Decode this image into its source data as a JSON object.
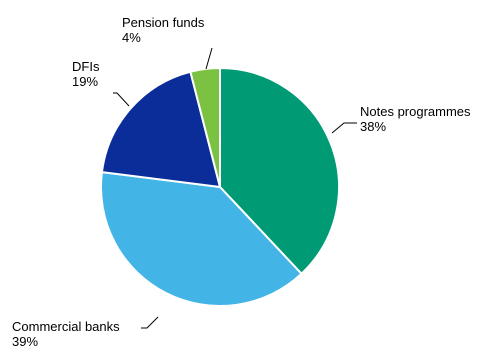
{
  "chart_data": {
    "type": "pie",
    "slices": [
      {
        "label": "Notes programmes",
        "value": 38,
        "value_label": "38%",
        "color": "#009a74"
      },
      {
        "label": "Commercial banks",
        "value": 39,
        "value_label": "39%",
        "color": "#43b4e6"
      },
      {
        "label": "DFIs",
        "value": 19,
        "value_label": "19%",
        "color": "#0a2d9a"
      },
      {
        "label": "Pension funds",
        "value": 4,
        "value_label": "4%",
        "color": "#7cc242"
      }
    ],
    "start_angle_deg": 0,
    "direction": "clockwise",
    "slice_border_color": "#ffffff",
    "leader_line_color": "#000000"
  }
}
